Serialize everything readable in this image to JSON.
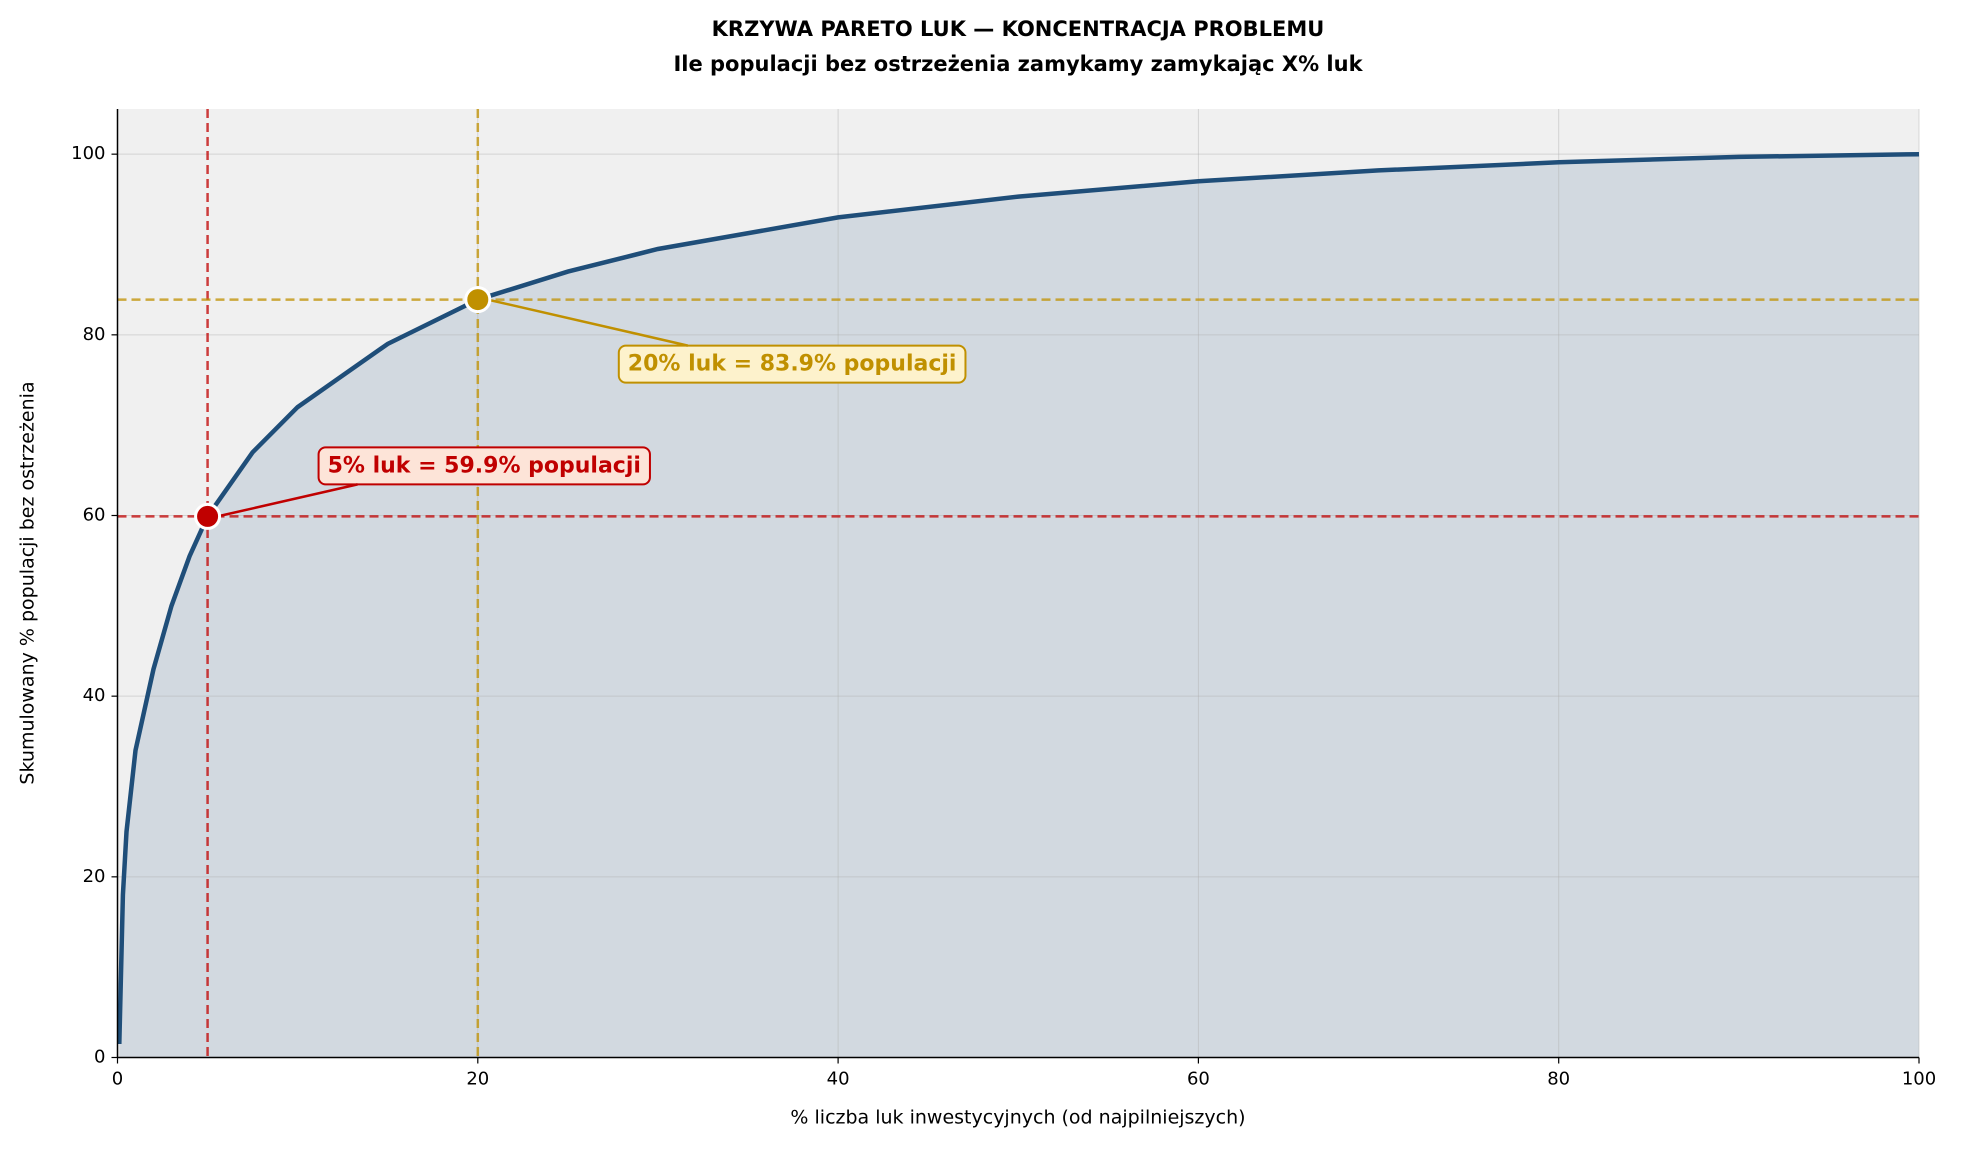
{
  "chart_data": {
    "type": "line",
    "title": "KRZYWA PARETO LUK — KONCENTRACJA PROBLEMU",
    "subtitle": "Ile populacji bez ostrzeżenia zamykamy zamykając X% luk",
    "x_label": "% liczba luk inwestycyjnych (od najpilniejszych)",
    "y_label": "Skumulowany % populacji bez ostrzeżenia",
    "x": [
      0.1,
      0.3,
      0.5,
      1,
      2,
      3,
      4,
      5,
      7.5,
      10,
      15,
      20,
      25,
      30,
      40,
      50,
      60,
      70,
      80,
      90,
      100
    ],
    "series": [
      {
        "name": "Pareto",
        "color": "#1f4e79",
        "values": [
          1.5,
          18,
          25,
          34,
          43,
          50,
          55.5,
          59.9,
          67,
          72,
          79,
          83.9,
          87,
          89.5,
          93,
          95.3,
          97,
          98.2,
          99.1,
          99.7,
          100
        ]
      }
    ],
    "fill_color": "#d2d9e0",
    "background": "#f0f0f0",
    "xlim": [
      0,
      100
    ],
    "xticks": [
      0,
      20,
      40,
      60,
      80,
      100
    ],
    "ylim": [
      0,
      105
    ],
    "yticks": [
      0,
      20,
      40,
      60,
      80,
      100
    ],
    "grid": true,
    "annotations": [
      {
        "x": 5,
        "y": 59.9,
        "label": "5% luk = 59.9% populacji",
        "color": "#c00000",
        "box": "#fde4d8"
      },
      {
        "x": 20,
        "y": 83.9,
        "label": "20% luk = 83.9% populacji",
        "color": "#c09000",
        "box": "#fdf2cc"
      }
    ]
  }
}
